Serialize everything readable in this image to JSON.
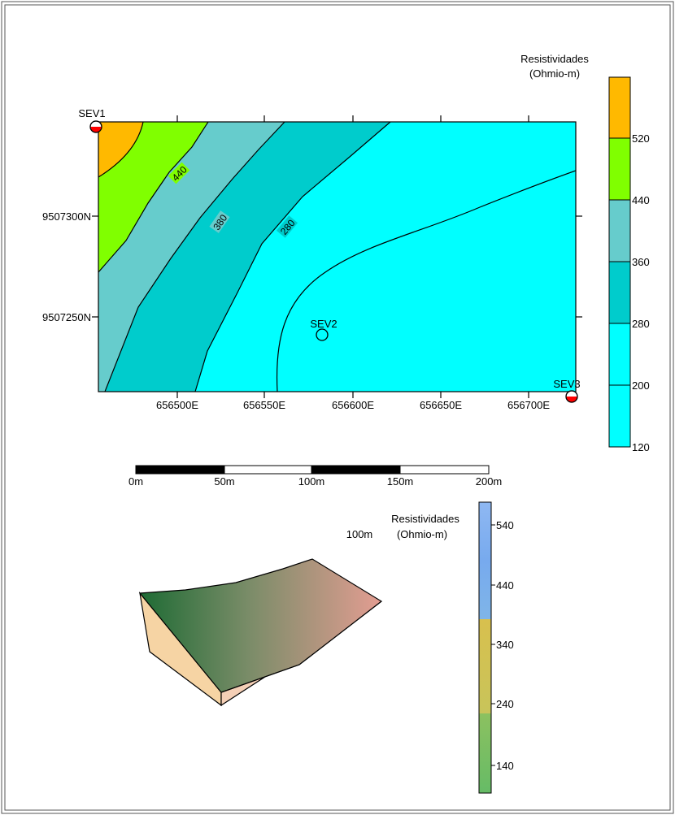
{
  "top_map": {
    "legend_title": "Resistividades",
    "legend_unit": "(Ohmio-m)",
    "legend_ticks": [
      "120",
      "200",
      "280",
      "360",
      "440",
      "520"
    ],
    "legend_colors": [
      "#00ffff",
      "#00ffff",
      "#00cccc",
      "#66cccc",
      "#80ff00",
      "#ffb900"
    ],
    "x_ticks": [
      "656500E",
      "656550E",
      "656600E",
      "656650E",
      "656700E"
    ],
    "y_ticks": [
      "9507300N",
      "9507250N"
    ],
    "contour_labels": [
      "440",
      "380",
      "280"
    ],
    "stations": [
      {
        "name": "SEV1",
        "type": "half-filled"
      },
      {
        "name": "SEV2",
        "type": "open"
      },
      {
        "name": "SEV3",
        "type": "half-filled"
      }
    ],
    "colors": {
      "orange": "#ffb900",
      "green": "#80ff00",
      "grey_teal": "#66cccc",
      "teal": "#00cccc",
      "cyan": "#00ffff",
      "station_red": "#ff0000"
    }
  },
  "scale_bar": {
    "labels": [
      "0m",
      "50m",
      "100m",
      "150m",
      "200m"
    ]
  },
  "block_3d": {
    "label": "100m",
    "legend_title": "Resistividades",
    "legend_unit": "(Ohmio-m)",
    "legend_ticks": [
      "140",
      "240",
      "340",
      "440",
      "540"
    ],
    "legend_colors": {
      "bottom": "#66bb66",
      "middle": "#d4c056",
      "top": "#77aaee"
    }
  }
}
